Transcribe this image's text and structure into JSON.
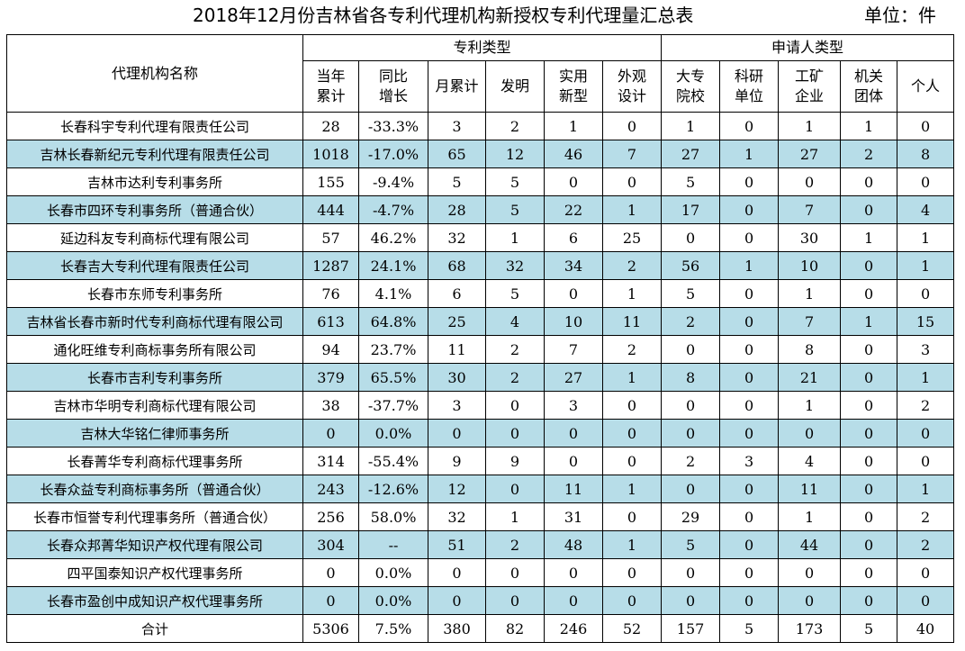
{
  "header": {
    "title": "2018年12月份吉林省各专利代理机构新授权专利代理量汇总表",
    "unit": "单位：件"
  },
  "columns": {
    "agency": "代理机构名称",
    "group_patent": "专利类型",
    "group_applicant": "申请人类型",
    "annual_total": [
      "当年",
      "累计"
    ],
    "yoy": [
      "同比",
      "增长"
    ],
    "month_total": "月累计",
    "invention": "发明",
    "utility": [
      "实用",
      "新型"
    ],
    "design": [
      "外观",
      "设计"
    ],
    "university": [
      "大专",
      "院校"
    ],
    "research": [
      "科研",
      "单位"
    ],
    "enterprise": [
      "工矿",
      "企业"
    ],
    "institution": [
      "机关",
      "团体"
    ],
    "individual": "个人"
  },
  "rows": [
    {
      "name": "长春科宇专利代理有限责任公司",
      "annual": "28",
      "yoy": "-33.3%",
      "month": "3",
      "invention": "2",
      "utility": "1",
      "design": "0",
      "university": "1",
      "research": "0",
      "enterprise": "1",
      "institution": "1",
      "individual": "0"
    },
    {
      "name": "吉林长春新纪元专利代理有限责任公司",
      "annual": "1018",
      "yoy": "-17.0%",
      "month": "65",
      "invention": "12",
      "utility": "46",
      "design": "7",
      "university": "27",
      "research": "1",
      "enterprise": "27",
      "institution": "2",
      "individual": "8"
    },
    {
      "name": "吉林市达利专利事务所",
      "annual": "155",
      "yoy": "-9.4%",
      "month": "5",
      "invention": "5",
      "utility": "0",
      "design": "0",
      "university": "5",
      "research": "0",
      "enterprise": "0",
      "institution": "0",
      "individual": "0"
    },
    {
      "name": "长春市四环专利事务所（普通合伙）",
      "annual": "444",
      "yoy": "-4.7%",
      "month": "28",
      "invention": "5",
      "utility": "22",
      "design": "1",
      "university": "17",
      "research": "0",
      "enterprise": "7",
      "institution": "0",
      "individual": "4"
    },
    {
      "name": "延边科友专利商标代理有限公司",
      "annual": "57",
      "yoy": "46.2%",
      "month": "32",
      "invention": "1",
      "utility": "6",
      "design": "25",
      "university": "0",
      "research": "0",
      "enterprise": "30",
      "institution": "1",
      "individual": "1"
    },
    {
      "name": "长春吉大专利代理有限责任公司",
      "annual": "1287",
      "yoy": "24.1%",
      "month": "68",
      "invention": "32",
      "utility": "34",
      "design": "2",
      "university": "56",
      "research": "1",
      "enterprise": "10",
      "institution": "0",
      "individual": "1"
    },
    {
      "name": "长春市东师专利事务所",
      "annual": "76",
      "yoy": "4.1%",
      "month": "6",
      "invention": "5",
      "utility": "0",
      "design": "1",
      "university": "5",
      "research": "0",
      "enterprise": "1",
      "institution": "0",
      "individual": "0"
    },
    {
      "name": "吉林省长春市新时代专利商标代理有限公司",
      "annual": "613",
      "yoy": "64.8%",
      "month": "25",
      "invention": "4",
      "utility": "10",
      "design": "11",
      "university": "2",
      "research": "0",
      "enterprise": "7",
      "institution": "1",
      "individual": "15"
    },
    {
      "name": "通化旺维专利商标事务所有限公司",
      "annual": "94",
      "yoy": "23.7%",
      "month": "11",
      "invention": "2",
      "utility": "7",
      "design": "2",
      "university": "0",
      "research": "0",
      "enterprise": "8",
      "institution": "0",
      "individual": "3"
    },
    {
      "name": "长春市吉利专利事务所",
      "annual": "379",
      "yoy": "65.5%",
      "month": "30",
      "invention": "2",
      "utility": "27",
      "design": "1",
      "university": "8",
      "research": "0",
      "enterprise": "21",
      "institution": "0",
      "individual": "1"
    },
    {
      "name": "吉林市华明专利商标代理有限公司",
      "annual": "38",
      "yoy": "-37.7%",
      "month": "3",
      "invention": "0",
      "utility": "3",
      "design": "0",
      "university": "0",
      "research": "0",
      "enterprise": "1",
      "institution": "0",
      "individual": "2"
    },
    {
      "name": "吉林大华铭仁律师事务所",
      "annual": "0",
      "yoy": "0.0%",
      "month": "0",
      "invention": "0",
      "utility": "0",
      "design": "0",
      "university": "0",
      "research": "0",
      "enterprise": "0",
      "institution": "0",
      "individual": "0"
    },
    {
      "name": "长春菁华专利商标代理事务所",
      "annual": "314",
      "yoy": "-55.4%",
      "month": "9",
      "invention": "9",
      "utility": "0",
      "design": "0",
      "university": "2",
      "research": "3",
      "enterprise": "4",
      "institution": "0",
      "individual": "0"
    },
    {
      "name": "长春众益专利商标事务所（普通合伙）",
      "annual": "243",
      "yoy": "-12.6%",
      "month": "12",
      "invention": "0",
      "utility": "11",
      "design": "1",
      "university": "0",
      "research": "0",
      "enterprise": "11",
      "institution": "0",
      "individual": "1"
    },
    {
      "name": "长春市恒誉专利代理事务所（普通合伙）",
      "annual": "256",
      "yoy": "58.0%",
      "month": "32",
      "invention": "1",
      "utility": "31",
      "design": "0",
      "university": "29",
      "research": "0",
      "enterprise": "1",
      "institution": "0",
      "individual": "2"
    },
    {
      "name": "长春众邦菁华知识产权代理有限公司",
      "annual": "304",
      "yoy": "--",
      "month": "51",
      "invention": "2",
      "utility": "48",
      "design": "1",
      "university": "5",
      "research": "0",
      "enterprise": "44",
      "institution": "0",
      "individual": "2"
    },
    {
      "name": "四平国泰知识产权代理事务所",
      "annual": "0",
      "yoy": "0.0%",
      "month": "0",
      "invention": "0",
      "utility": "0",
      "design": "0",
      "university": "0",
      "research": "0",
      "enterprise": "0",
      "institution": "0",
      "individual": "0"
    },
    {
      "name": "长春市盈创中成知识产权代理事务所",
      "annual": "0",
      "yoy": "0.0%",
      "month": "0",
      "invention": "0",
      "utility": "0",
      "design": "0",
      "university": "0",
      "research": "0",
      "enterprise": "0",
      "institution": "0",
      "individual": "0"
    }
  ],
  "total": {
    "name": "合计",
    "annual": "5306",
    "yoy": "7.5%",
    "month": "380",
    "invention": "82",
    "utility": "246",
    "design": "52",
    "university": "157",
    "research": "5",
    "enterprise": "173",
    "institution": "5",
    "individual": "40"
  },
  "colors": {
    "row_shade": "#b7dde8",
    "border": "#000000",
    "background": "#ffffff"
  }
}
